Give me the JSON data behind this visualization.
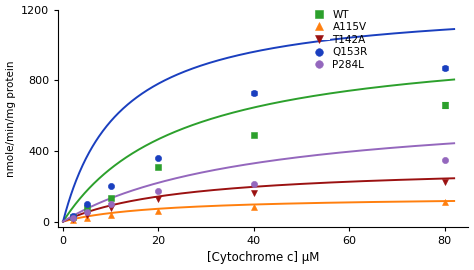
{
  "series": [
    {
      "label": "WT",
      "color": "#2ca02c",
      "marker": "s",
      "x_data": [
        2,
        5,
        10,
        20,
        40,
        80
      ],
      "y_data": [
        25,
        75,
        135,
        310,
        490,
        660
      ],
      "vmax": 1050,
      "km": 25
    },
    {
      "label": "A115V",
      "color": "#ff7f0e",
      "marker": "^",
      "x_data": [
        2,
        5,
        10,
        20,
        40,
        80
      ],
      "y_data": [
        8,
        20,
        40,
        60,
        85,
        110
      ],
      "vmax": 145,
      "km": 20
    },
    {
      "label": "T142A",
      "color": "#9b1111",
      "marker": "v",
      "x_data": [
        2,
        5,
        10,
        20,
        40,
        80
      ],
      "y_data": [
        12,
        38,
        75,
        130,
        160,
        225
      ],
      "vmax": 320,
      "km": 25
    },
    {
      "label": "Q153R",
      "color": "#1a3fbf",
      "marker": "o",
      "x_data": [
        2,
        5,
        10,
        20,
        40,
        80
      ],
      "y_data": [
        30,
        100,
        200,
        360,
        730,
        870
      ],
      "vmax": 1250,
      "km": 12
    },
    {
      "label": "P284L",
      "color": "#9467bd",
      "marker": "o",
      "x_data": [
        2,
        5,
        10,
        20,
        40,
        80
      ],
      "y_data": [
        18,
        55,
        100,
        175,
        210,
        350
      ],
      "vmax": 660,
      "km": 40
    }
  ],
  "errorbar_data": {
    "Q153R": {
      "x": [
        40,
        80
      ],
      "y": [
        730,
        870
      ],
      "yerr": [
        12,
        12
      ]
    },
    "WT": {
      "x": [
        80
      ],
      "y": [
        660
      ],
      "yerr": [
        18
      ]
    }
  },
  "xlabel": "[Cytochrome c] μM",
  "ylabel": "nmole/min/mg protein",
  "xlim": [
    -1,
    85
  ],
  "ylim": [
    -30,
    1200
  ],
  "xticks": [
    0,
    20,
    40,
    60,
    80
  ],
  "yticks": [
    0,
    400,
    800,
    1200
  ],
  "background_color": "#ffffff",
  "figsize": [
    4.74,
    2.7
  ],
  "dpi": 100,
  "marker_size": 4.5,
  "line_width": 1.4
}
